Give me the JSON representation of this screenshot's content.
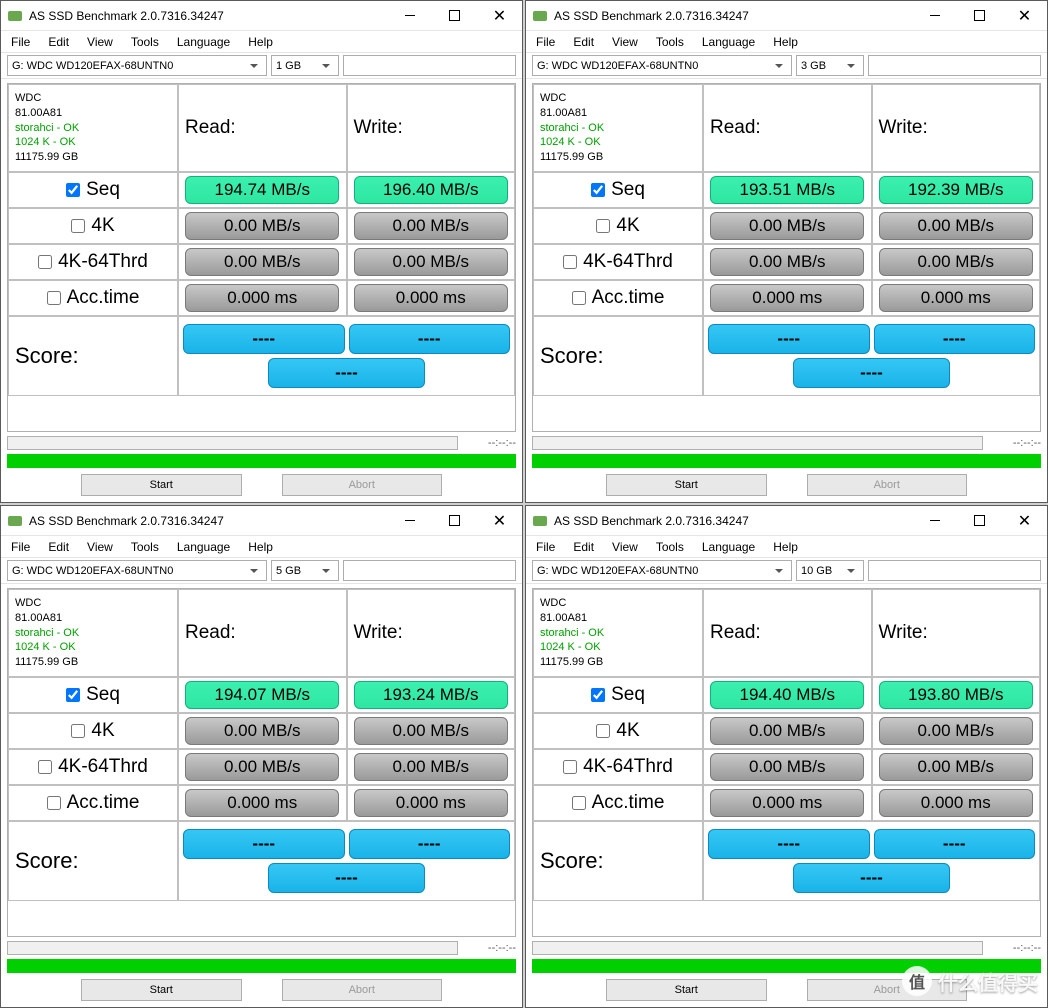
{
  "app": {
    "title": "AS SSD Benchmark 2.0.7316.34247",
    "menu": [
      "File",
      "Edit",
      "View",
      "Tools",
      "Language",
      "Help"
    ],
    "drive_option": "G: WDC WD120EFAX-68UNTN0",
    "start_btn": "Start",
    "abort_btn": "Abort",
    "time_text": "--:--:--"
  },
  "info": {
    "vendor": "WDC",
    "fw": "81.00A81",
    "driver": "storahci - OK",
    "align": "1024 K - OK",
    "size": "11175.99 GB"
  },
  "headers": {
    "read": "Read:",
    "write": "Write:",
    "score": "Score:"
  },
  "rows": {
    "seq": "Seq",
    "k4": "4K",
    "k4t": "4K-64Thrd",
    "acc": "Acc.time"
  },
  "zeros": {
    "mbs": "0.00 MB/s",
    "ms": "0.000 ms",
    "dash": "----"
  },
  "panels": [
    {
      "size": "1 GB",
      "seq_read": "194.74 MB/s",
      "seq_write": "196.40 MB/s"
    },
    {
      "size": "3 GB",
      "seq_read": "193.51 MB/s",
      "seq_write": "192.39 MB/s"
    },
    {
      "size": "5 GB",
      "seq_read": "194.07 MB/s",
      "seq_write": "193.24 MB/s"
    },
    {
      "size": "10 GB",
      "seq_read": "194.40 MB/s",
      "seq_write": "193.80 MB/s"
    }
  ],
  "colors": {
    "green_pill": "#2ee6a2",
    "gray_pill": "#9a9a9a",
    "blue_pill": "#1ab3e8",
    "progress_green": "#00d000",
    "ok_text": "#00a000"
  },
  "watermark": {
    "badge": "值",
    "text": "什么值得买"
  }
}
